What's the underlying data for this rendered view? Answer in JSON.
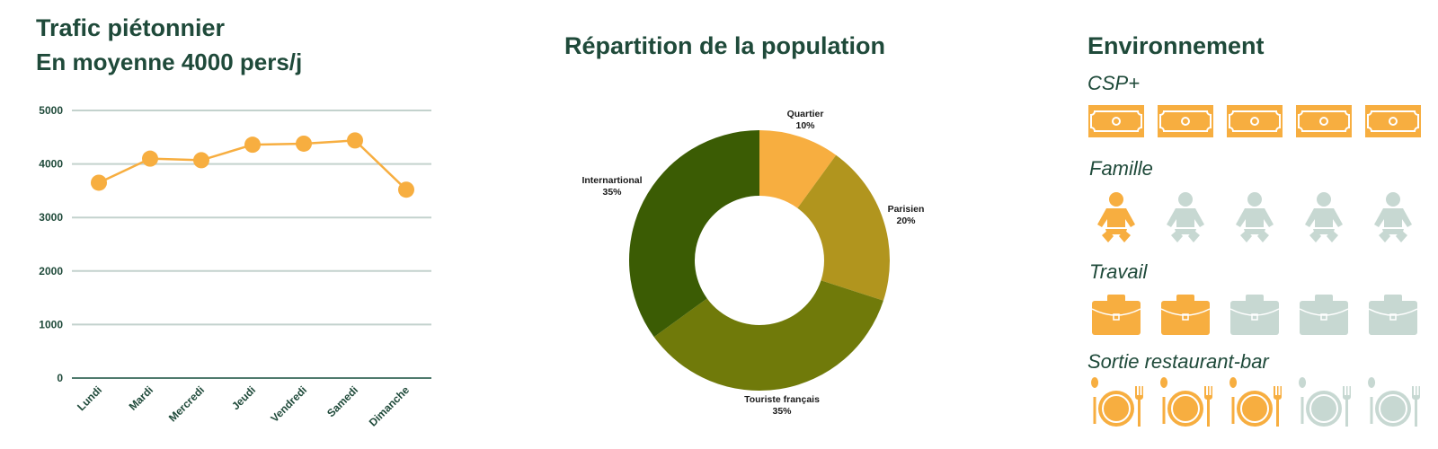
{
  "colors": {
    "dark_green": "#1f4a3a",
    "orange": "#f7ae40",
    "grey_green": "#c7d8d2",
    "gridline": "#c3d2cd",
    "slice_quartier": "#f7ae40",
    "slice_parisien": "#b1951e",
    "slice_touriste": "#707a0a",
    "slice_international": "#3b5c04"
  },
  "traffic": {
    "title": "Trafic piétonnier",
    "subtitle": "En moyenne 4000 pers/j"
  },
  "population": {
    "title": "Répartition de la population"
  },
  "environment": {
    "title": "Environnement",
    "categories": [
      {
        "label": "CSP+",
        "icon": "money-bill-icon",
        "active": 5,
        "total": 5
      },
      {
        "label": "Famille",
        "icon": "baby-icon",
        "active": 1,
        "total": 5
      },
      {
        "label": "Travail",
        "icon": "briefcase-icon",
        "active": 2,
        "total": 5
      },
      {
        "label": "Sortie restaurant-bar",
        "icon": "plate-cutlery-icon",
        "active": 3,
        "total": 5
      }
    ]
  },
  "chart_data": [
    {
      "type": "line",
      "categories": [
        "Lundi",
        "Mardi",
        "Mercredi",
        "Jeudi",
        "Vendredi",
        "Samedi",
        "Dimanche"
      ],
      "values": [
        3650,
        4100,
        4070,
        4360,
        4380,
        4440,
        3520
      ],
      "yticks": [
        0,
        1000,
        2000,
        3000,
        4000,
        5000
      ],
      "ylim": [
        0,
        5000
      ],
      "grid": true
    },
    {
      "type": "pie",
      "donut": true,
      "slices": [
        {
          "label": "Quartier",
          "value": 10,
          "text": "10%"
        },
        {
          "label": "Parisien",
          "value": 20,
          "text": "20%"
        },
        {
          "label": "Touriste français",
          "value": 35,
          "text": "35%"
        },
        {
          "label": "Internartional",
          "value": 35,
          "text": "35%"
        }
      ]
    }
  ]
}
